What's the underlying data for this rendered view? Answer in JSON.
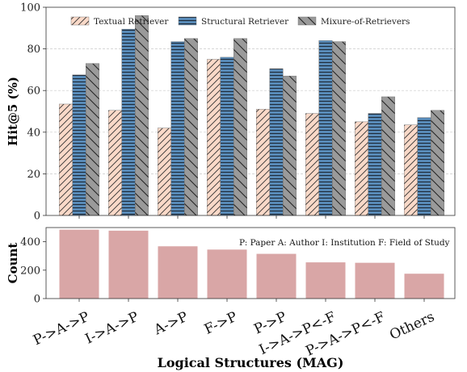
{
  "chart_data": [
    {
      "type": "bar",
      "ylabel": "Hit@5 (%)",
      "ylim": [
        0,
        100
      ],
      "yticks": [
        0,
        20,
        40,
        60,
        80,
        100
      ],
      "grid": true,
      "legend_position": "top",
      "categories": [
        "P->A->P",
        "I->A->P",
        "A->P",
        "F->P",
        "P->P",
        "I->A->P<-F",
        "P->A->P<-F",
        "Others"
      ],
      "series": [
        {
          "name": "Textual Retriever",
          "color": "#fad9c8",
          "hatch": "forward-diagonal",
          "values": [
            53.5,
            50.5,
            42,
            75,
            51,
            49,
            45,
            43.5
          ]
        },
        {
          "name": "Structural Retriever",
          "color": "#5b8fbe",
          "hatch": "horizontal",
          "values": [
            67.5,
            89.5,
            83.5,
            76,
            70.5,
            84,
            49,
            47
          ]
        },
        {
          "name": "Mixure-of-Retrievers",
          "color": "#9a9a9a",
          "hatch": "back-diagonal",
          "values": [
            73,
            96,
            85,
            85,
            67,
            83.5,
            57,
            50.5
          ]
        }
      ]
    },
    {
      "type": "bar",
      "ylabel": "Count",
      "ylim": [
        0,
        500
      ],
      "yticks": [
        0,
        200,
        400
      ],
      "xlabel": "Logical Structures (MAG)",
      "color": "#d9a6a6",
      "categories": [
        "P->A->P",
        "I->A->P",
        "A->P",
        "F->P",
        "P->P",
        "I->A->P<-F",
        "P->A->P<-F",
        "Others"
      ],
      "values": [
        485,
        478,
        368,
        345,
        315,
        255,
        252,
        175
      ],
      "annotation": "P: Paper A: Author I: Institution F: Field of Study"
    }
  ]
}
